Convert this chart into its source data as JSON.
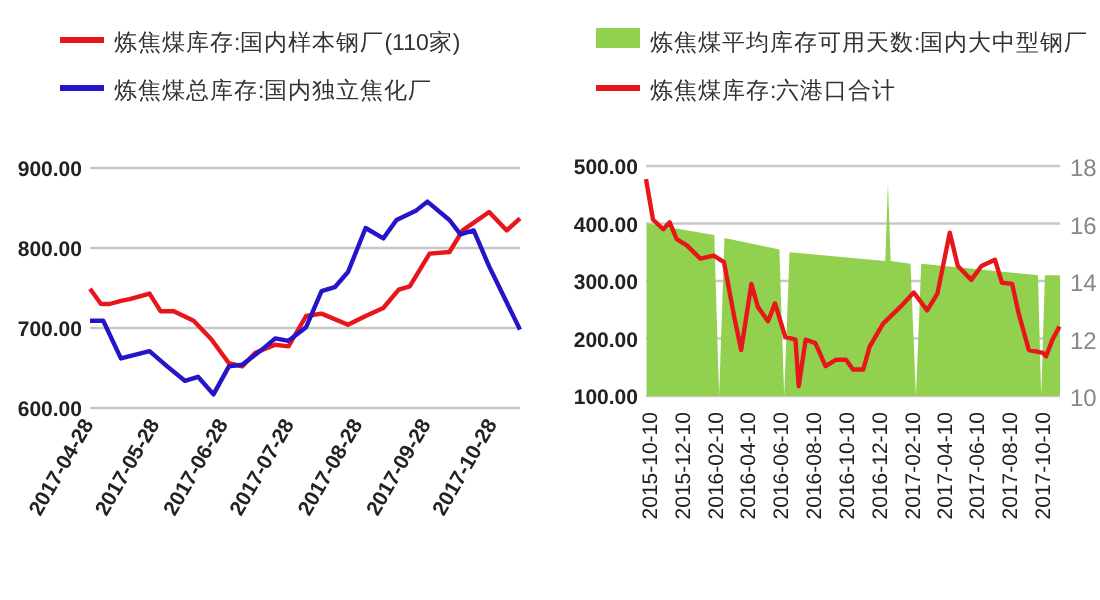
{
  "chart_data": [
    {
      "type": "line",
      "xlim": [
        "2017-04-28",
        "2017-11-09"
      ],
      "xticks": [
        "2017-04-28",
        "2017-05-28",
        "2017-06-28",
        "2017-07-28",
        "2017-08-28",
        "2017-09-28",
        "2017-10-28"
      ],
      "ylim": [
        600,
        900
      ],
      "yticks": [
        {
          "value": 600,
          "label": "600.00"
        },
        {
          "value": 700,
          "label": "700.00"
        },
        {
          "value": 800,
          "label": "800.00"
        },
        {
          "value": 900,
          "label": "900.00"
        }
      ],
      "grid": "y",
      "legend": "top",
      "series": [
        {
          "name": "炼焦煤库存:国内样本钢厂(110家)",
          "color": "#e8161b",
          "x": [
            "2017-04-28",
            "2017-05-03",
            "2017-05-07",
            "2017-05-12",
            "2017-05-16",
            "2017-05-25",
            "2017-05-30",
            "2017-06-05",
            "2017-06-14",
            "2017-06-22",
            "2017-06-30",
            "2017-07-06",
            "2017-07-12",
            "2017-07-21",
            "2017-07-27",
            "2017-08-04",
            "2017-08-11",
            "2017-08-23",
            "2017-08-31",
            "2017-09-08",
            "2017-09-15",
            "2017-09-20",
            "2017-09-29",
            "2017-10-08",
            "2017-10-14",
            "2017-10-26",
            "2017-11-03",
            "2017-11-09"
          ],
          "values": [
            749,
            730,
            730,
            734,
            736,
            743,
            721,
            721,
            709,
            686,
            656,
            652,
            669,
            679,
            677,
            715,
            718,
            704,
            715,
            725,
            748,
            752,
            793,
            795,
            822,
            845,
            822,
            837
          ]
        },
        {
          "name": "炼焦煤总库存:国内独立焦化厂",
          "color": "#2415c8",
          "x": [
            "2017-04-28",
            "2017-05-04",
            "2017-05-12",
            "2017-05-25",
            "2017-06-02",
            "2017-06-10",
            "2017-06-16",
            "2017-06-23",
            "2017-06-30",
            "2017-07-06",
            "2017-07-15",
            "2017-07-21",
            "2017-07-27",
            "2017-08-04",
            "2017-08-11",
            "2017-08-17",
            "2017-08-23",
            "2017-08-31",
            "2017-09-08",
            "2017-09-14",
            "2017-09-23",
            "2017-09-28",
            "2017-10-08",
            "2017-10-13",
            "2017-10-19",
            "2017-10-26",
            "2017-11-09"
          ],
          "values": [
            709,
            709,
            662,
            671,
            652,
            634,
            639,
            617,
            652,
            654,
            673,
            687,
            684,
            701,
            746,
            751,
            770,
            825,
            812,
            835,
            847,
            858,
            835,
            817,
            822,
            777,
            698
          ]
        }
      ]
    },
    {
      "type": "line",
      "xlim": [
        "2015-09-27",
        "2017-11-05"
      ],
      "xticks": [
        "2015-10-10",
        "2015-12-10",
        "2016-02-10",
        "2016-04-10",
        "2016-06-10",
        "2016-08-10",
        "2016-10-10",
        "2016-12-10",
        "2017-02-10",
        "2017-04-10",
        "2017-06-10",
        "2017-08-10",
        "2017-10-10"
      ],
      "ylim": [
        100,
        500
      ],
      "yticks": [
        {
          "value": 100,
          "label": "100.00"
        },
        {
          "value": 200,
          "label": "200.00"
        },
        {
          "value": 300,
          "label": "300.00"
        },
        {
          "value": 400,
          "label": "400.00"
        },
        {
          "value": 500,
          "label": "500.00"
        }
      ],
      "y2lim": [
        10,
        18
      ],
      "y2ticks": [
        10,
        12,
        14,
        16,
        18
      ],
      "grid": "y",
      "legend": "top",
      "series": [
        {
          "name": "炼焦煤平均库存可用天数:国内大中型钢厂",
          "type": "area",
          "axis": "y2",
          "color": "#92d050",
          "x": [
            "2015-09-28",
            "2016-02-01",
            "2016-02-10",
            "2016-02-20",
            "2016-06-01",
            "2016-06-10",
            "2016-06-20",
            "2016-12-15",
            "2016-12-20",
            "2016-12-25",
            "2017-01-31",
            "2017-02-10",
            "2017-02-20",
            "2017-09-25",
            "2017-10-01",
            "2017-10-08",
            "2017-11-05"
          ],
          "values": [
            16.0,
            15.6,
            10,
            15.5,
            15.1,
            10,
            15.0,
            14.7,
            17.4,
            14.7,
            14.6,
            10,
            14.6,
            14.2,
            10,
            14.2,
            14.2
          ]
        },
        {
          "name": "炼焦煤库存:六港口合计",
          "color": "#e8161b",
          "x": [
            "2015-09-27",
            "2015-10-10",
            "2015-10-29",
            "2015-11-10",
            "2015-11-23",
            "2015-12-12",
            "2016-01-06",
            "2016-01-31",
            "2016-02-19",
            "2016-03-09",
            "2016-03-22",
            "2016-04-10",
            "2016-04-22",
            "2016-05-11",
            "2016-05-24",
            "2016-06-12",
            "2016-07-01",
            "2016-07-07",
            "2016-07-20",
            "2016-08-07",
            "2016-08-26",
            "2016-09-14",
            "2016-10-03",
            "2016-10-16",
            "2016-11-04",
            "2016-11-16",
            "2016-12-11",
            "2017-01-12",
            "2017-02-06",
            "2017-03-03",
            "2017-03-22",
            "2017-04-14",
            "2017-04-29",
            "2017-05-24",
            "2017-06-12",
            "2017-07-07",
            "2017-07-20",
            "2017-08-08",
            "2017-08-20",
            "2017-09-08",
            "2017-10-04",
            "2017-10-10",
            "2017-10-22",
            "2017-11-04"
          ],
          "values": [
            477,
            407,
            390,
            402,
            373,
            362,
            339,
            344,
            333,
            238,
            180,
            295,
            255,
            230,
            261,
            203,
            198,
            117,
            198,
            192,
            152,
            163,
            163,
            146,
            146,
            186,
            226,
            255,
            280,
            249,
            278,
            384,
            326,
            302,
            326,
            337,
            297,
            295,
            244,
            180,
            175,
            169,
            198,
            221
          ]
        }
      ]
    }
  ]
}
